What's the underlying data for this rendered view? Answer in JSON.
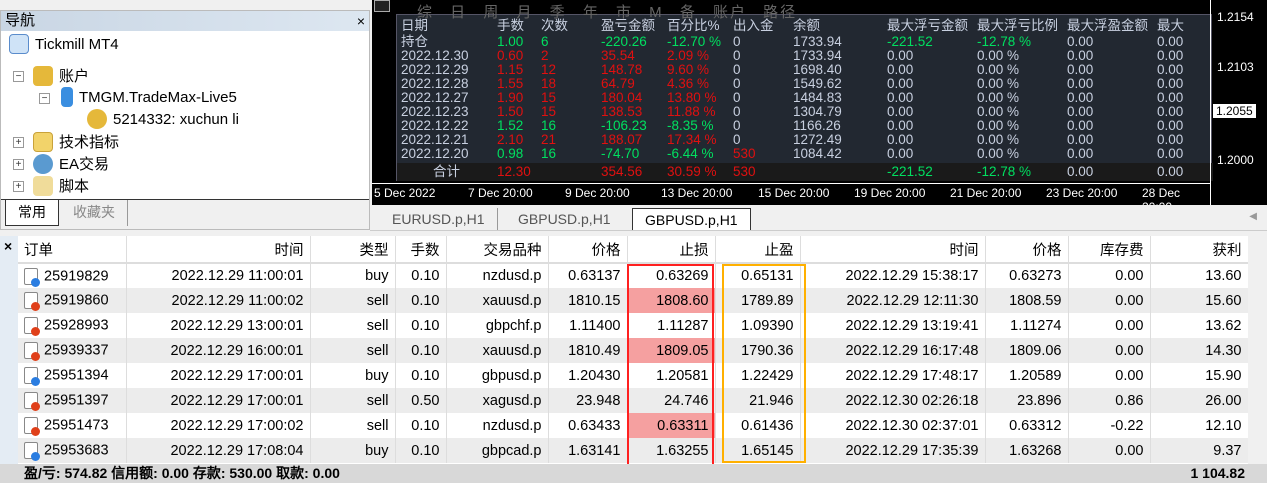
{
  "navigator": {
    "title": "导航",
    "close": "×",
    "root": "Tickmill MT4",
    "accounts": "账户",
    "server": "TMGM.TradeMax-Live5",
    "account": "5214332: xuchun li",
    "indicators": "技术指标",
    "experts": "EA交易",
    "scripts": "脚本",
    "tabs": [
      "常用",
      "收藏夹"
    ]
  },
  "stats": {
    "menu": "综 日 周 月 季 年 市 M 备 账户 路径",
    "headers": [
      "日期",
      "手数",
      "次数",
      "盈亏金额",
      "百分比%",
      "出入金",
      "余额",
      "最大浮亏金额",
      "最大浮亏比例",
      "最大浮盈金额",
      "最大"
    ],
    "rows": [
      [
        "持仓",
        "1.00",
        "6",
        "-220.26",
        "-12.70 %",
        "0",
        "1733.94",
        "-221.52",
        "-12.78 %",
        "0.00",
        "0.00",
        "g"
      ],
      [
        "2022.12.30",
        "0.60",
        "2",
        "35.54",
        "2.09 %",
        "0",
        "1733.94",
        "0.00",
        "0.00 %",
        "0.00",
        "0.00",
        "r"
      ],
      [
        "2022.12.29",
        "1.15",
        "12",
        "148.78",
        "9.60 %",
        "0",
        "1698.40",
        "0.00",
        "0.00 %",
        "0.00",
        "0.00",
        "r"
      ],
      [
        "2022.12.28",
        "1.55",
        "18",
        "64.79",
        "4.36 %",
        "0",
        "1549.62",
        "0.00",
        "0.00 %",
        "0.00",
        "0.00",
        "r"
      ],
      [
        "2022.12.27",
        "1.90",
        "15",
        "180.04",
        "13.80 %",
        "0",
        "1484.83",
        "0.00",
        "0.00 %",
        "0.00",
        "0.00",
        "r"
      ],
      [
        "2022.12.23",
        "1.50",
        "15",
        "138.53",
        "11.88 %",
        "0",
        "1304.79",
        "0.00",
        "0.00 %",
        "0.00",
        "0.00",
        "r"
      ],
      [
        "2022.12.22",
        "1.52",
        "16",
        "-106.23",
        "-8.35 %",
        "0",
        "1166.26",
        "0.00",
        "0.00 %",
        "0.00",
        "0.00",
        "g"
      ],
      [
        "2022.12.21",
        "2.10",
        "21",
        "188.07",
        "17.34 %",
        "0",
        "1272.49",
        "0.00",
        "0.00 %",
        "0.00",
        "0.00",
        "r"
      ],
      [
        "2022.12.20",
        "0.98",
        "16",
        "-74.70",
        "-6.44 %",
        "530",
        "1084.42",
        "0.00",
        "0.00 %",
        "0.00",
        "0.00",
        "g"
      ]
    ],
    "total": {
      "label": "合计",
      "lots": "12.30",
      "pl": "354.56",
      "pct": "30.59 %",
      "dep": "530",
      "maxloss": "-221.52",
      "maxlosspct": "-12.78 %",
      "maxprofit": "0.00",
      "max": "0.00"
    }
  },
  "chart": {
    "yticks": [
      "1.2154",
      "1.2103",
      "1.2055",
      "1.2000"
    ],
    "xticks": [
      "5 Dec 2022",
      "7 Dec 20:00",
      "9 Dec 20:00",
      "13 Dec 20:00",
      "15 Dec 20:00",
      "19 Dec 20:00",
      "21 Dec 20:00",
      "23 Dec 20:00",
      "28 Dec 20:00"
    ],
    "tabs": [
      "EURUSD.p,H1",
      "GBPUSD.p,H1",
      "GBPUSD.p,H1"
    ]
  },
  "terminal": {
    "close": "×",
    "headers": [
      "订单",
      "时间",
      "类型",
      "手数",
      "交易品种",
      "价格",
      "止损",
      "止盈",
      "时间",
      "价格",
      "库存费",
      "获利"
    ],
    "rows": [
      [
        "25919829",
        "2022.12.29 11:00:01",
        "buy",
        "0.10",
        "nzdusd.p",
        "0.63137",
        "0.63269",
        "0.65131",
        "2022.12.29 15:38:17",
        "0.63273",
        "0.00",
        "13.60"
      ],
      [
        "25919860",
        "2022.12.29 11:00:02",
        "sell",
        "0.10",
        "xauusd.p",
        "1810.15",
        "1808.60",
        "1789.89",
        "2022.12.29 12:11:30",
        "1808.59",
        "0.00",
        "15.60"
      ],
      [
        "25928993",
        "2022.12.29 13:00:01",
        "sell",
        "0.10",
        "gbpchf.p",
        "1.11400",
        "1.11287",
        "1.09390",
        "2022.12.29 13:19:41",
        "1.11274",
        "0.00",
        "13.62"
      ],
      [
        "25939337",
        "2022.12.29 16:00:01",
        "sell",
        "0.10",
        "xauusd.p",
        "1810.49",
        "1809.05",
        "1790.36",
        "2022.12.29 16:17:48",
        "1809.06",
        "0.00",
        "14.30"
      ],
      [
        "25951394",
        "2022.12.29 17:00:01",
        "buy",
        "0.10",
        "gbpusd.p",
        "1.20430",
        "1.20581",
        "1.22429",
        "2022.12.29 17:48:17",
        "1.20589",
        "0.00",
        "15.90"
      ],
      [
        "25951397",
        "2022.12.29 17:00:01",
        "sell",
        "0.50",
        "xagusd.p",
        "23.948",
        "24.746",
        "21.946",
        "2022.12.30 02:26:18",
        "23.896",
        "0.86",
        "26.00"
      ],
      [
        "25951473",
        "2022.12.29 17:00:02",
        "sell",
        "0.10",
        "nzdusd.p",
        "0.63433",
        "0.63311",
        "0.61436",
        "2022.12.30 02:37:01",
        "0.63312",
        "-0.22",
        "12.10"
      ],
      [
        "25953683",
        "2022.12.29 17:08:04",
        "buy",
        "0.10",
        "gbpcad.p",
        "1.63141",
        "1.63255",
        "1.65145",
        "2022.12.29 17:35:39",
        "1.63268",
        "0.00",
        "9.37"
      ]
    ],
    "sl_highlight_rows": [
      1,
      3,
      6
    ],
    "status": "盈/亏: 574.82  信用额: 0.00  存款: 530.00  取款: 0.00",
    "total": "1 104.82"
  },
  "colors": {
    "buy": "#2a7de1",
    "sell": "#e0401a",
    "sl_highlight": "#f5a0a0",
    "sl_box": "#ff2020",
    "tp_box": "#ffb000"
  }
}
